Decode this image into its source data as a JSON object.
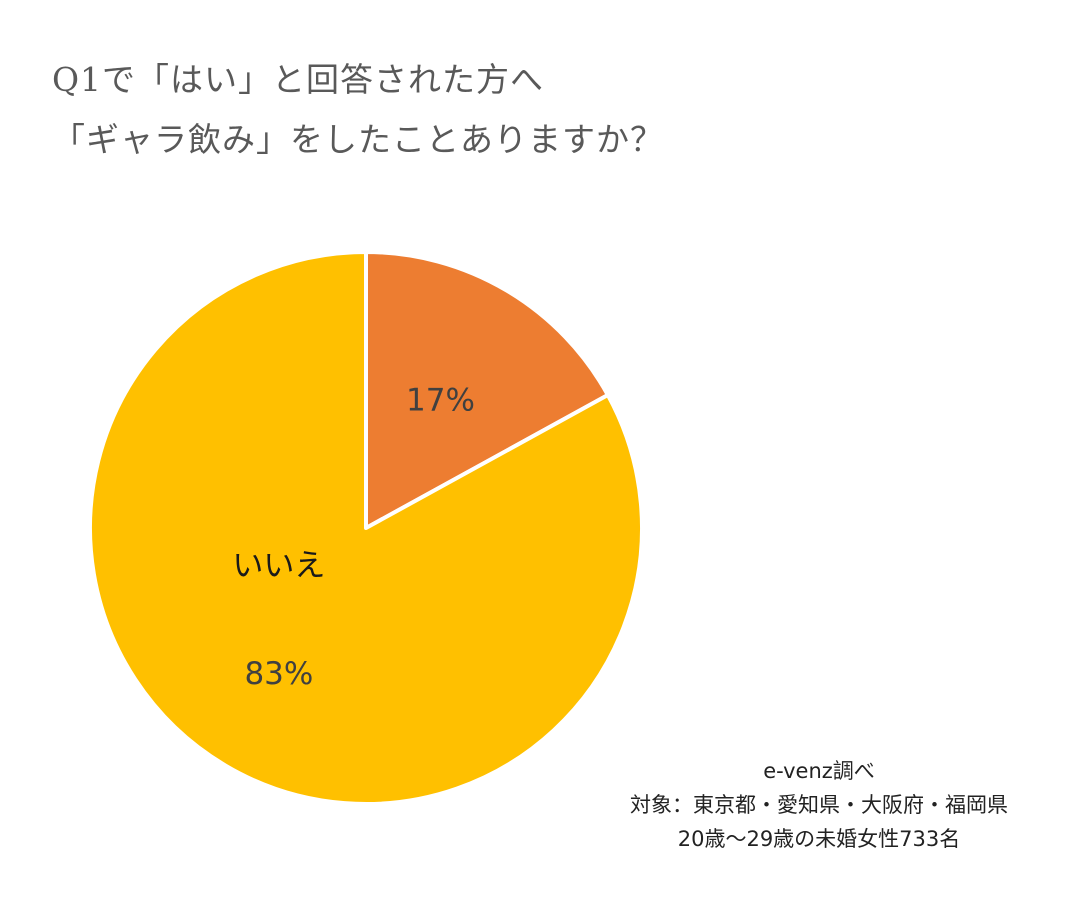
{
  "chart_data": {
    "type": "pie",
    "title_lines": [
      "Q1で「はい」と回答された方へ",
      "「ギャラ飲み」をしたことありますか？"
    ],
    "slices": [
      {
        "name": "",
        "value": 17,
        "label": "17%",
        "color": "#ED7D31"
      },
      {
        "name": "いいえ",
        "value": 83,
        "label": "83%",
        "color": "#FFC000"
      }
    ],
    "start_angle_deg": 0,
    "direction": "clockwise"
  },
  "note": {
    "lines": [
      "e-venz調べ",
      "対象：東京都・愛知県・大阪府・福岡県",
      "20歳〜29歳の未婚女性733名"
    ]
  }
}
